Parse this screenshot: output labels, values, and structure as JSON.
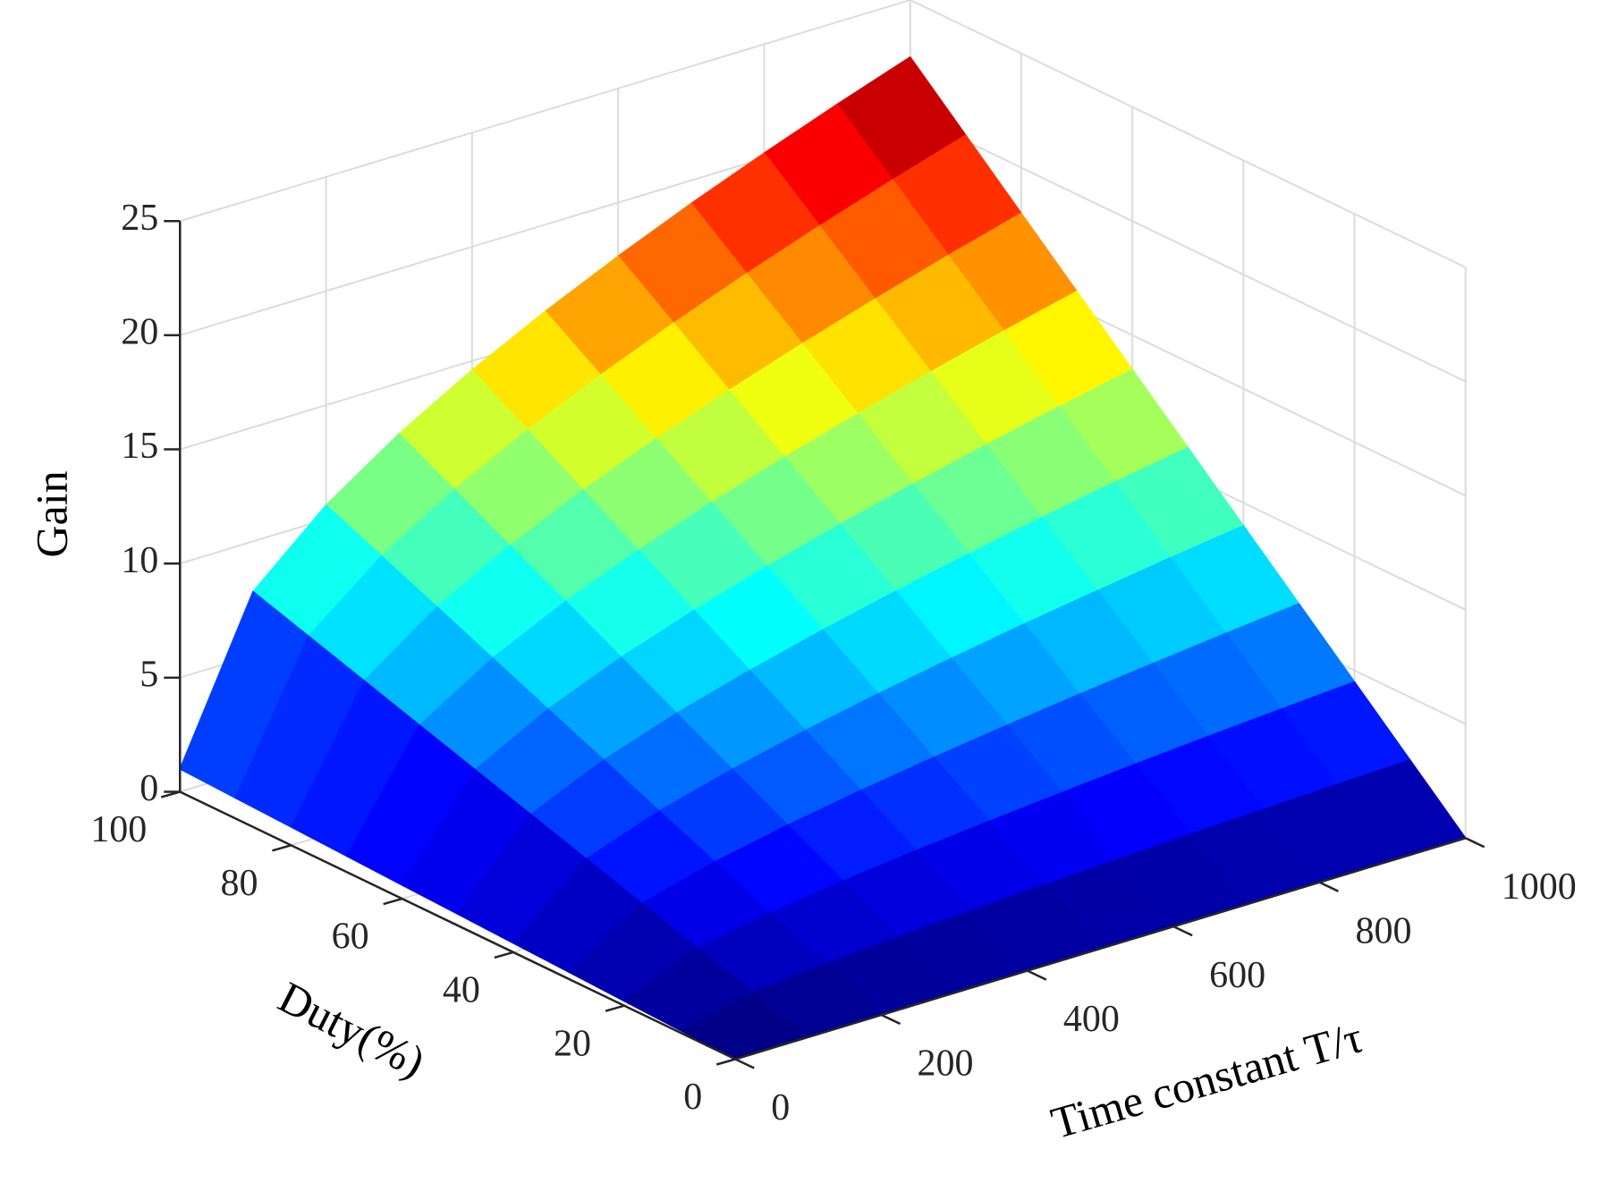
{
  "chart_data": {
    "type": "surface",
    "xlabel": "Time constant T/τ",
    "ylabel": "Duty(%)",
    "zlabel": "Gain",
    "x": [
      0,
      100,
      200,
      300,
      400,
      500,
      600,
      700,
      800,
      900,
      1000
    ],
    "y": [
      0,
      10,
      20,
      30,
      40,
      50,
      60,
      70,
      80,
      90,
      100
    ],
    "z": [
      [
        0,
        0,
        0,
        0,
        0,
        0,
        0,
        0,
        0,
        0,
        0
      ],
      [
        0.1,
        0.78,
        1.06,
        1.28,
        1.46,
        1.62,
        1.77,
        1.9,
        2.02,
        2.14,
        2.25
      ],
      [
        0.2,
        1.56,
        2.12,
        2.56,
        2.92,
        3.24,
        3.53,
        3.8,
        4.05,
        4.28,
        4.5
      ],
      [
        0.3,
        2.34,
        3.19,
        3.83,
        4.38,
        4.86,
        5.3,
        5.7,
        6.07,
        6.42,
        6.75
      ],
      [
        0.4,
        3.12,
        4.25,
        5.11,
        5.84,
        6.48,
        7.06,
        7.6,
        8.09,
        8.56,
        9
      ],
      [
        0.5,
        3.9,
        5.31,
        6.39,
        7.3,
        8.1,
        8.83,
        9.5,
        10.12,
        10.7,
        11.25
      ],
      [
        0.6,
        4.68,
        6.37,
        7.67,
        8.76,
        9.72,
        10.59,
        11.39,
        12.14,
        12.84,
        13.5
      ],
      [
        0.7,
        5.46,
        7.43,
        8.95,
        10.22,
        11.34,
        12.36,
        13.29,
        14.16,
        14.98,
        15.75
      ],
      [
        0.8,
        6.24,
        8.5,
        10.22,
        11.68,
        12.96,
        14.12,
        15.19,
        16.18,
        17.12,
        18
      ],
      [
        0.9,
        7.02,
        9.56,
        11.5,
        13.14,
        14.58,
        15.89,
        17.09,
        18.21,
        19.26,
        20.25
      ],
      [
        1,
        7.8,
        10.62,
        12.78,
        14.6,
        16.2,
        17.65,
        18.99,
        20.23,
        21.4,
        22.5
      ]
    ],
    "xlim": [
      0,
      1000
    ],
    "ylim": [
      0,
      100
    ],
    "zlim": [
      0,
      25
    ],
    "xticks": [
      0,
      200,
      400,
      600,
      800,
      1000
    ],
    "yticks": [
      0,
      20,
      40,
      60,
      80,
      100
    ],
    "zticks": [
      0,
      5,
      10,
      15,
      20,
      25
    ],
    "colormap": "jet",
    "grid": true
  }
}
